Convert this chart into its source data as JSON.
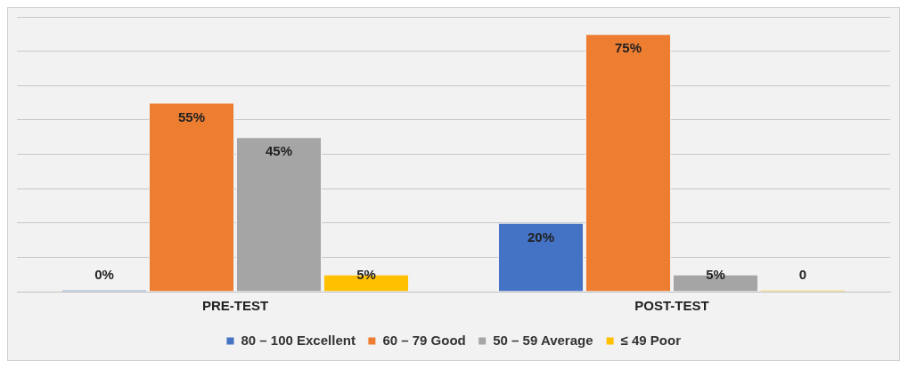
{
  "chart_data": {
    "type": "bar",
    "categories": [
      "PRE-TEST",
      "POST-TEST"
    ],
    "series": [
      {
        "name": "80 – 100 Excellent",
        "color": "#4472c4",
        "values": [
          0,
          20
        ],
        "value_labels": [
          "0%",
          "20%"
        ]
      },
      {
        "name": "60 – 79 Good",
        "color": "#ed7d31",
        "values": [
          55,
          75
        ],
        "value_labels": [
          "55%",
          "75%"
        ]
      },
      {
        "name": "50 – 59 Average",
        "color": "#a5a5a5",
        "values": [
          45,
          5
        ],
        "value_labels": [
          "45%",
          "5%"
        ]
      },
      {
        "name": "≤ 49 Poor",
        "color": "#ffc000",
        "values": [
          5,
          0
        ],
        "value_labels": [
          "5%",
          "0"
        ]
      }
    ],
    "ylim": [
      0,
      80
    ],
    "yticks": [
      {
        "value": 0,
        "label": null
      },
      {
        "value": 10,
        "label": null
      },
      {
        "value": 20,
        "label": null
      },
      {
        "value": 30,
        "label": null
      },
      {
        "value": 40,
        "label": null
      },
      {
        "value": 50,
        "label": null
      },
      {
        "value": 60,
        "label": null
      },
      {
        "value": 70,
        "label": null
      },
      {
        "value": 80,
        "label": null
      }
    ],
    "grid": "y",
    "legend": "bottom",
    "tick_labels": "x"
  }
}
